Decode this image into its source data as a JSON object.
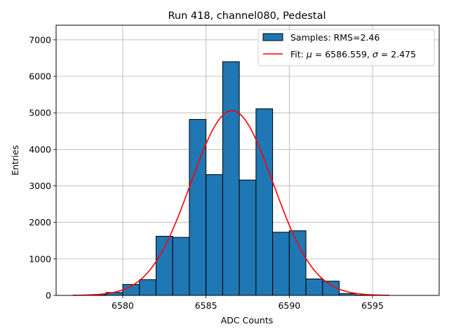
{
  "chart_data": {
    "type": "bar",
    "title": "Run 418, channel080, Pedestal",
    "xlabel": "ADC Counts",
    "ylabel": "Entries",
    "xlim": [
      6576.0,
      6599.0
    ],
    "ylim": [
      0,
      7400
    ],
    "grid": true,
    "legend_position": "top-right",
    "xticks": [
      6580,
      6585,
      6590,
      6595
    ],
    "yticks": [
      0,
      1000,
      2000,
      3000,
      4000,
      5000,
      6000,
      7000
    ],
    "histogram": {
      "name": "Samples: RMS=2.46",
      "color": "#1f77b4",
      "edge_color": "#000000",
      "bins": [
        {
          "x0": 6577.0,
          "x1": 6578.0,
          "value": 0
        },
        {
          "x0": 6578.0,
          "x1": 6579.0,
          "value": 20
        },
        {
          "x0": 6579.0,
          "x1": 6580.0,
          "value": 80
        },
        {
          "x0": 6580.0,
          "x1": 6581.0,
          "value": 300
        },
        {
          "x0": 6581.0,
          "x1": 6582.0,
          "value": 430
        },
        {
          "x0": 6582.0,
          "x1": 6583.0,
          "value": 1620
        },
        {
          "x0": 6583.0,
          "x1": 6584.0,
          "value": 1590
        },
        {
          "x0": 6584.0,
          "x1": 6585.0,
          "value": 4820
        },
        {
          "x0": 6585.0,
          "x1": 6586.0,
          "value": 3310
        },
        {
          "x0": 6586.0,
          "x1": 6587.0,
          "value": 6400
        },
        {
          "x0": 6587.0,
          "x1": 6588.0,
          "value": 3160
        },
        {
          "x0": 6588.0,
          "x1": 6589.0,
          "value": 5110
        },
        {
          "x0": 6589.0,
          "x1": 6590.0,
          "value": 1730
        },
        {
          "x0": 6590.0,
          "x1": 6591.0,
          "value": 1770
        },
        {
          "x0": 6591.0,
          "x1": 6592.0,
          "value": 450
        },
        {
          "x0": 6592.0,
          "x1": 6593.0,
          "value": 390
        },
        {
          "x0": 6593.0,
          "x1": 6594.0,
          "value": 50
        },
        {
          "x0": 6594.0,
          "x1": 6595.0,
          "value": 10
        },
        {
          "x0": 6595.0,
          "x1": 6596.0,
          "value": 0
        }
      ]
    },
    "fit": {
      "name_prefix": "Fit: ",
      "mu_symbol": "μ",
      "sigma_symbol": "σ",
      "mu_text": " = 6586.559, ",
      "sigma_text": " = 2.475",
      "color": "#ff0000",
      "type": "gaussian",
      "mu": 6586.559,
      "sigma": 2.475,
      "amplitude": 5060,
      "x_range": [
        6577.0,
        6596.0
      ]
    }
  }
}
